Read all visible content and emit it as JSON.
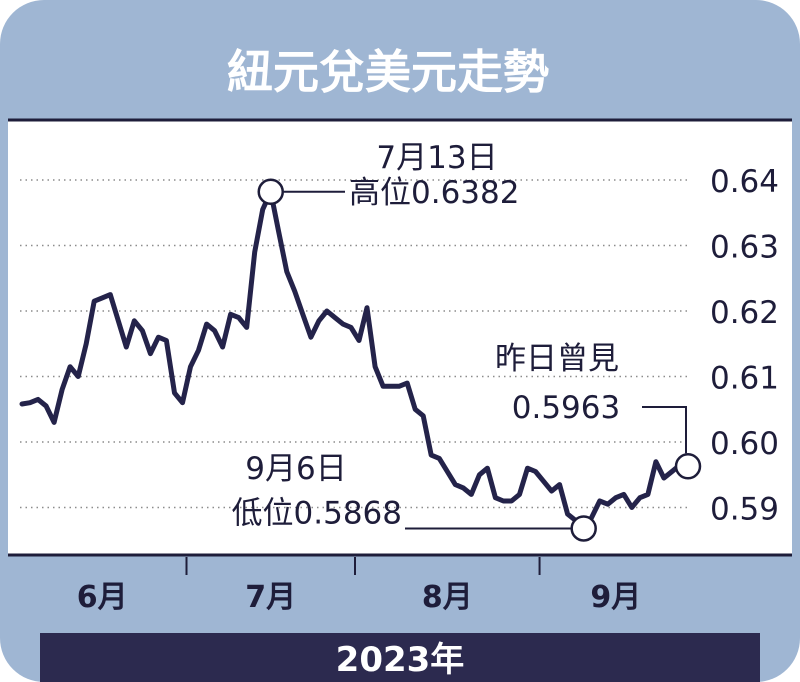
{
  "chart_data": {
    "type": "line",
    "title": "紐元兌美元走勢",
    "xlabel": "2023年",
    "ylabel": "",
    "ylim": [
      0.585,
      0.645
    ],
    "yticks": [
      {
        "value": 0.64,
        "label": "0.64"
      },
      {
        "value": 0.63,
        "label": "0.63"
      },
      {
        "value": 0.62,
        "label": "0.62"
      },
      {
        "value": 0.61,
        "label": "0.61"
      },
      {
        "value": 0.6,
        "label": "0.60"
      },
      {
        "value": 0.59,
        "label": "0.59"
      }
    ],
    "months": [
      {
        "label": "6月",
        "start": 0,
        "end": 20
      },
      {
        "label": "7月",
        "start": 21,
        "end": 41
      },
      {
        "label": "8月",
        "start": 42,
        "end": 64
      },
      {
        "label": "9月",
        "start": 65,
        "end": 83
      }
    ],
    "grid": true,
    "series": [
      {
        "values": [
          0.6058,
          0.606,
          0.6065,
          0.6055,
          0.603,
          0.608,
          0.6115,
          0.61,
          0.615,
          0.6215,
          0.622,
          0.6225,
          0.6185,
          0.6145,
          0.6185,
          0.617,
          0.6135,
          0.616,
          0.6155,
          0.6075,
          0.606,
          0.6115,
          0.614,
          0.618,
          0.617,
          0.6145,
          0.6195,
          0.619,
          0.6175,
          0.629,
          0.6355,
          0.6382,
          0.632,
          0.626,
          0.623,
          0.6195,
          0.616,
          0.6185,
          0.62,
          0.619,
          0.618,
          0.6175,
          0.6155,
          0.6205,
          0.6115,
          0.6085,
          0.6085,
          0.6085,
          0.609,
          0.605,
          0.604,
          0.598,
          0.5975,
          0.5955,
          0.5935,
          0.593,
          0.592,
          0.595,
          0.596,
          0.5915,
          0.591,
          0.591,
          0.592,
          0.596,
          0.5955,
          0.594,
          0.5925,
          0.5935,
          0.589,
          0.588,
          0.5868,
          0.5885,
          0.591,
          0.5905,
          0.5915,
          0.592,
          0.59,
          0.5915,
          0.592,
          0.597,
          0.5945,
          0.5955,
          0.5965,
          0.5963
        ]
      }
    ],
    "annotations": [
      {
        "point": "high",
        "index": 31,
        "value": 0.6382,
        "line1": "7月13日",
        "line2": "高位0.6382"
      },
      {
        "point": "low",
        "index": 70,
        "value": 0.5868,
        "line1": "9月6日",
        "line2": "低位0.5868"
      },
      {
        "point": "last",
        "index": 83,
        "value": 0.5963,
        "line1": "昨日曾見",
        "line2": "0.5963"
      }
    ]
  },
  "colors": {
    "panel": "#9fb6d3",
    "navy": "#2c2a4f",
    "line": "#24234a",
    "grid": "#8c8c8c",
    "white": "#ffffff"
  }
}
